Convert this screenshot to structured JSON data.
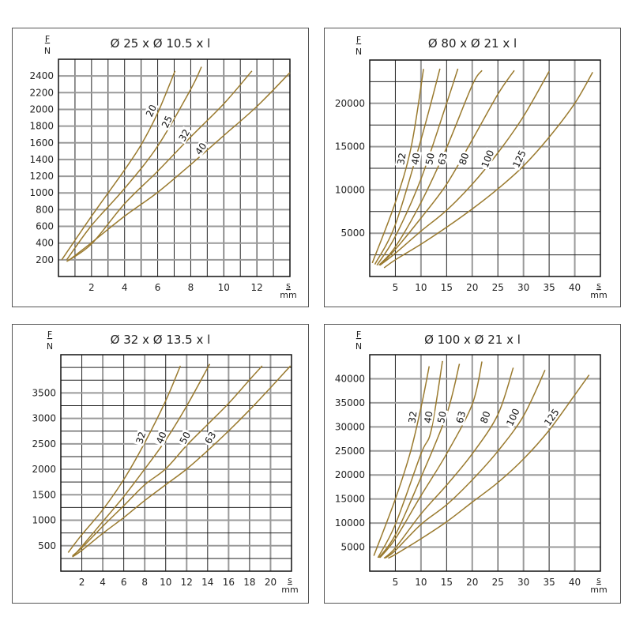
{
  "chart_data": [
    {
      "type": "line",
      "title": "Ø 25 x Ø 10.5 x l",
      "xlabel": "s",
      "xunit": "mm",
      "ylabel": "F",
      "yunit": "N",
      "xlim": [
        0,
        14
      ],
      "ylim": [
        0,
        2600
      ],
      "xticks": [
        2,
        4,
        6,
        8,
        10,
        12
      ],
      "yticks": [
        200,
        400,
        600,
        800,
        1000,
        1200,
        1400,
        1600,
        1800,
        2000,
        2200,
        2400
      ],
      "xgrid_step": 1,
      "ygrid_step": 200,
      "grid": true,
      "color": "#9a7a2e",
      "series": [
        {
          "name": "20",
          "x": [
            0.2,
            2,
            4,
            5,
            6,
            7.05
          ],
          "y": [
            200,
            722,
            1276,
            1576,
            1956,
            2460
          ]
        },
        {
          "name": "25",
          "x": [
            0.5,
            2,
            4,
            6,
            8,
            8.65
          ],
          "y": [
            200,
            611,
            1054,
            1560,
            2241,
            2510
          ]
        },
        {
          "name": "32",
          "x": [
            0.5,
            2,
            4,
            6,
            8,
            10,
            11.7
          ],
          "y": [
            180,
            390,
            871,
            1260,
            1671,
            2067,
            2460
          ]
        },
        {
          "name": "40",
          "x": [
            0.6,
            2,
            4,
            6,
            8,
            10,
            12,
            14
          ],
          "y": [
            190,
            405,
            722,
            1007,
            1340,
            1687,
            2035,
            2440
          ]
        }
      ]
    },
    {
      "type": "line",
      "title": "Ø 80 x Ø 21 x l",
      "xlabel": "s",
      "xunit": "mm",
      "ylabel": "F",
      "yunit": "N",
      "xlim": [
        0,
        45
      ],
      "ylim": [
        0,
        25000
      ],
      "xticks": [
        5,
        10,
        15,
        20,
        25,
        30,
        35,
        40
      ],
      "yticks": [
        5000,
        10000,
        15000,
        20000
      ],
      "xgrid_step": 5,
      "ygrid_step": 2500,
      "grid": true,
      "color": "#9a7a2e",
      "series": [
        {
          "name": "32",
          "x": [
            0.5,
            5,
            8.1,
            10.5
          ],
          "y": [
            1566,
            8554,
            15000,
            23976
          ]
        },
        {
          "name": "40",
          "x": [
            1,
            5,
            10,
            13.7
          ],
          "y": [
            1400,
            6000,
            15800,
            24000
          ]
        },
        {
          "name": "50",
          "x": [
            1.4,
            5,
            10,
            15,
            17.2
          ],
          "y": [
            1300,
            4640,
            11270,
            20000,
            24000
          ]
        },
        {
          "name": "63",
          "x": [
            1.8,
            5,
            10,
            15,
            20,
            21.9
          ],
          "y": [
            1300,
            3430,
            8550,
            14880,
            22100,
            23800
          ]
        },
        {
          "name": "80",
          "x": [
            2,
            5,
            10,
            15,
            20,
            25,
            28.2
          ],
          "y": [
            1300,
            3130,
            6750,
            10660,
            15780,
            21050,
            23800
          ]
        },
        {
          "name": "100",
          "x": [
            2,
            5,
            10,
            15,
            20,
            25,
            30,
            35
          ],
          "y": [
            1300,
            2680,
            5240,
            7650,
            10660,
            14280,
            18500,
            23700
          ]
        },
        {
          "name": "125",
          "x": [
            2.8,
            5,
            10,
            15,
            20,
            25,
            30,
            35,
            40,
            43.5
          ],
          "y": [
            1000,
            1930,
            3730,
            5690,
            7800,
            10120,
            12770,
            16090,
            20000,
            23600
          ]
        }
      ]
    },
    {
      "type": "line",
      "title": "Ø 32 x Ø 13.5 x l",
      "xlabel": "s",
      "xunit": "mm",
      "ylabel": "F",
      "yunit": "N",
      "xlim": [
        0,
        22
      ],
      "ylim": [
        0,
        4250
      ],
      "xticks": [
        2,
        4,
        6,
        8,
        10,
        12,
        14,
        16,
        18,
        20
      ],
      "yticks": [
        500,
        1000,
        1500,
        2000,
        2500,
        3000,
        3500
      ],
      "xgrid_step": 2,
      "ygrid_step": 250,
      "grid": true,
      "color": "#9a7a2e",
      "series": [
        {
          "name": "32",
          "x": [
            0.7,
            2,
            4,
            6,
            8,
            10,
            11.4
          ],
          "y": [
            366,
            716,
            1206,
            1799,
            2521,
            3345,
            4031
          ]
        },
        {
          "name": "40",
          "x": [
            1.2,
            2,
            4,
            6,
            8,
            10,
            12,
            14.2
          ],
          "y": [
            300,
            485,
            974,
            1464,
            2005,
            2572,
            3242,
            4067
          ]
        },
        {
          "name": "50",
          "x": [
            1.1,
            2,
            4,
            6,
            8,
            10,
            12,
            14,
            16,
            18,
            19.2
          ],
          "y": [
            300,
            459,
            881,
            1284,
            1696,
            2010,
            2469,
            2881,
            3294,
            3758,
            4030
          ]
        },
        {
          "name": "63",
          "x": [
            1.1,
            2,
            4,
            6,
            8,
            10,
            12,
            14,
            16,
            18,
            20,
            21.9
          ],
          "y": [
            280,
            407,
            742,
            1052,
            1387,
            1696,
            2005,
            2366,
            2753,
            3165,
            3603,
            4030
          ]
        }
      ]
    },
    {
      "type": "line",
      "title": "Ø 100 x Ø 21 x l",
      "xlabel": "s",
      "xunit": "mm",
      "ylabel": "F",
      "yunit": "N",
      "xlim": [
        0,
        45
      ],
      "ylim": [
        0,
        45000
      ],
      "xticks": [
        5,
        10,
        15,
        20,
        25,
        30,
        35,
        40
      ],
      "yticks": [
        5000,
        10000,
        15000,
        20000,
        25000,
        30000,
        35000,
        40000
      ],
      "xgrid_step": 5,
      "ygrid_step": 5000,
      "grid": true,
      "color": "#9a7a2e",
      "series": [
        {
          "name": "32",
          "x": [
            0.8,
            5,
            8,
            10.2,
            11.6
          ],
          "y": [
            3200,
            15000,
            25000,
            35000,
            42600
          ]
        },
        {
          "name": "40",
          "x": [
            1.6,
            5,
            10,
            12,
            14.2
          ],
          "y": [
            2800,
            9730,
            24400,
            29300,
            43700
          ]
        },
        {
          "name": "50",
          "x": [
            1.8,
            5,
            10,
            15,
            17.5
          ],
          "y": [
            2800,
            7550,
            19500,
            32560,
            43100
          ]
        },
        {
          "name": "63",
          "x": [
            2,
            5,
            10,
            15,
            20,
            21.9
          ],
          "y": [
            2800,
            6740,
            15700,
            24400,
            34700,
            43600
          ]
        },
        {
          "name": "80",
          "x": [
            2.8,
            5,
            10,
            15,
            20,
            25,
            28
          ],
          "y": [
            2700,
            4840,
            11900,
            17880,
            24400,
            32560,
            42300
          ]
        },
        {
          "name": "100",
          "x": [
            3,
            5,
            10,
            15,
            20,
            25,
            30,
            34.2
          ],
          "y": [
            2700,
            4300,
            9730,
            13800,
            18970,
            24950,
            32280,
            41800
          ]
        },
        {
          "name": "125",
          "x": [
            3.6,
            5,
            10,
            15,
            20,
            25,
            30,
            35,
            40,
            42.8
          ],
          "y": [
            2700,
            3480,
            6740,
            10270,
            14350,
            18420,
            23320,
            29300,
            36630,
            40800
          ]
        }
      ]
    }
  ]
}
